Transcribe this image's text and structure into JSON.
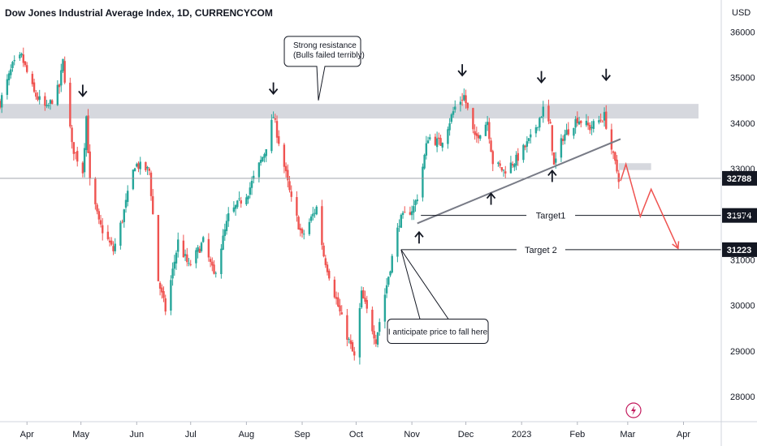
{
  "chart_data": {
    "type": "candlestick",
    "title": "Dow Jones Industrial Average Index, 1D, CURRENCYCOM",
    "currency": "USD",
    "y_ticks": [
      36000,
      35000,
      34000,
      33000,
      32000,
      31000,
      30000,
      29000,
      28000
    ],
    "ylim": [
      27450,
      36700
    ],
    "x_ticks": [
      {
        "label": "Apr",
        "date": "2022-04-01"
      },
      {
        "label": "May",
        "date": "2022-05-01"
      },
      {
        "label": "Jun",
        "date": "2022-06-01"
      },
      {
        "label": "Jul",
        "date": "2022-07-01"
      },
      {
        "label": "Aug",
        "date": "2022-08-01"
      },
      {
        "label": "Sep",
        "date": "2022-09-01"
      },
      {
        "label": "Oct",
        "date": "2022-10-01"
      },
      {
        "label": "Nov",
        "date": "2022-11-01"
      },
      {
        "label": "Dec",
        "date": "2022-12-01"
      },
      {
        "label": "2023",
        "date": "2023-01-01"
      },
      {
        "label": "Feb",
        "date": "2023-02-01"
      },
      {
        "label": "Mar",
        "date": "2023-03-01"
      },
      {
        "label": "Apr",
        "date": "2023-04-01"
      }
    ],
    "xlim": [
      "2022-03-17",
      "2023-04-22"
    ],
    "colors": {
      "up": "#26a69a",
      "down": "#ef5350",
      "last_price": "#131722",
      "projection": "#ef5350"
    },
    "price_path": [
      [
        "2022-03-17",
        34450
      ],
      [
        "2022-03-24",
        35250
      ],
      [
        "2022-03-29",
        35450
      ],
      [
        "2022-04-05",
        34650
      ],
      [
        "2022-04-12",
        34300
      ],
      [
        "2022-04-19",
        34800
      ],
      [
        "2022-04-21",
        35350
      ],
      [
        "2022-04-26",
        33500
      ],
      [
        "2022-05-02",
        32950
      ],
      [
        "2022-05-04",
        34150
      ],
      [
        "2022-05-06",
        32700
      ],
      [
        "2022-05-11",
        31800
      ],
      [
        "2022-05-19",
        31200
      ],
      [
        "2022-05-24",
        31900
      ],
      [
        "2022-05-31",
        33100
      ],
      [
        "2022-06-08",
        32950
      ],
      [
        "2022-06-13",
        30550
      ],
      [
        "2022-06-17",
        29900
      ],
      [
        "2022-06-24",
        31400
      ],
      [
        "2022-06-30",
        30850
      ],
      [
        "2022-07-08",
        31400
      ],
      [
        "2022-07-14",
        30650
      ],
      [
        "2022-07-22",
        31950
      ],
      [
        "2022-08-02",
        32500
      ],
      [
        "2022-08-11",
        33350
      ],
      [
        "2022-08-16",
        34150
      ],
      [
        "2022-08-22",
        33050
      ],
      [
        "2022-08-26",
        32300
      ],
      [
        "2022-09-01",
        31500
      ],
      [
        "2022-09-09",
        32150
      ],
      [
        "2022-09-13",
        31100
      ],
      [
        "2022-09-23",
        29700
      ],
      [
        "2022-09-30",
        28850
      ],
      [
        "2022-10-04",
        30250
      ],
      [
        "2022-10-12",
        29250
      ],
      [
        "2022-10-18",
        30450
      ],
      [
        "2022-10-25",
        31850
      ],
      [
        "2022-11-02",
        32150
      ],
      [
        "2022-11-04",
        32400
      ],
      [
        "2022-11-10",
        33700
      ],
      [
        "2022-11-17",
        33550
      ],
      [
        "2022-11-25",
        34350
      ],
      [
        "2022-11-30",
        34600
      ],
      [
        "2022-12-06",
        33650
      ],
      [
        "2022-12-13",
        34050
      ],
      [
        "2022-12-16",
        33150
      ],
      [
        "2022-12-22",
        32950
      ],
      [
        "2022-12-29",
        33200
      ],
      [
        "2023-01-06",
        33650
      ],
      [
        "2023-01-13",
        34300
      ],
      [
        "2023-01-17",
        33900
      ],
      [
        "2023-01-19",
        33050
      ],
      [
        "2023-01-24",
        33700
      ],
      [
        "2023-02-01",
        34100
      ],
      [
        "2023-02-08",
        33900
      ],
      [
        "2023-02-16",
        34150
      ],
      [
        "2023-02-21",
        33250
      ],
      [
        "2023-02-24",
        32800
      ]
    ],
    "resistance_zone": {
      "from": "2022-03-17",
      "to": "2023-04-22",
      "low": 34100,
      "high": 34420
    },
    "small_zone": {
      "from": "2023-02-24",
      "to": "2023-03-14",
      "low": 32970,
      "high": 33120
    },
    "trendline": {
      "from": [
        "2022-11-04",
        31800
      ],
      "to": [
        "2023-02-25",
        33650
      ]
    },
    "targets": [
      {
        "label": "Target1",
        "value": 31974,
        "badge": "31974",
        "from": "2022-11-06"
      },
      {
        "label": "Target 2",
        "value": 31223,
        "badge": "31223",
        "from": "2022-10-26"
      }
    ],
    "last_price": {
      "value": 32788,
      "badge": "32788"
    },
    "projection": [
      [
        "2023-02-25",
        32730
      ],
      [
        "2023-02-28",
        33100
      ],
      [
        "2023-03-08",
        31950
      ],
      [
        "2023-03-14",
        32550
      ],
      [
        "2023-03-29",
        31250
      ]
    ],
    "down_arrows": [
      [
        "2022-05-02",
        34700
      ],
      [
        "2022-08-16",
        34750
      ],
      [
        "2022-11-29",
        35150
      ],
      [
        "2023-01-12",
        35000
      ],
      [
        "2023-02-17",
        35050
      ]
    ],
    "up_arrows": [
      [
        "2022-11-05",
        31500
      ],
      [
        "2022-12-15",
        32350
      ],
      [
        "2023-01-18",
        32850
      ]
    ],
    "annotations": [
      {
        "id": "resistance-note",
        "lines": [
          "Strong resistance",
          "(Bulls failed terribly)"
        ],
        "anchor": [
          "2022-09-01",
          35600
        ]
      },
      {
        "id": "fall-note",
        "lines": [
          "I anticipate price to fall here"
        ],
        "anchor": [
          "2022-11-10",
          29700
        ]
      }
    ]
  }
}
